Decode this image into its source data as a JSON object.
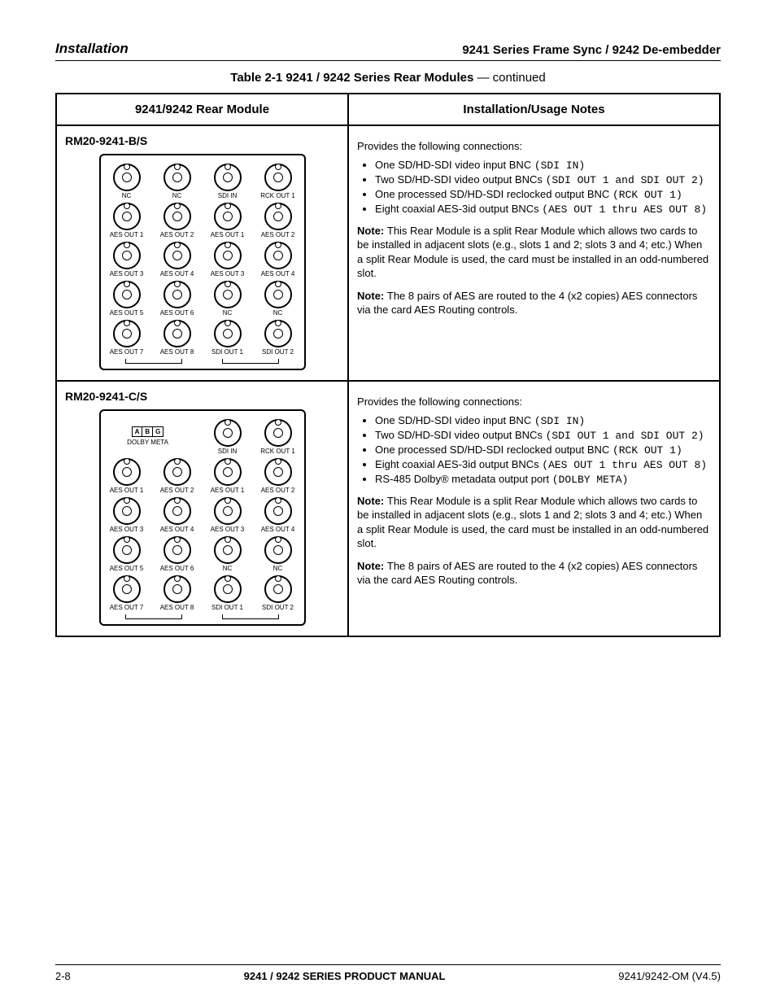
{
  "header": {
    "left": "Installation",
    "right": "9241 Series Frame Sync / 9242 De-embedder"
  },
  "tableTitle": {
    "main": "Table 2-1   9241 / 9242 Series Rear Modules",
    "cont": " — continued"
  },
  "columns": [
    "9241/9242 Rear Module",
    "Installation/Usage Notes"
  ],
  "rows": [
    {
      "module": "RM20-9241-B/S",
      "panel": [
        [
          {
            "t": "bnc",
            "l": "NC"
          },
          {
            "t": "bnc",
            "l": "NC"
          },
          {
            "t": "bnc",
            "l": "SDI IN"
          },
          {
            "t": "bnc",
            "l": "RCK OUT 1"
          }
        ],
        [
          {
            "t": "bnc",
            "l": "AES OUT 1"
          },
          {
            "t": "bnc",
            "l": "AES OUT 2"
          },
          {
            "t": "bnc",
            "l": "AES OUT 1"
          },
          {
            "t": "bnc",
            "l": "AES OUT 2"
          }
        ],
        [
          {
            "t": "bnc",
            "l": "AES OUT 3"
          },
          {
            "t": "bnc",
            "l": "AES OUT 4"
          },
          {
            "t": "bnc",
            "l": "AES OUT 3"
          },
          {
            "t": "bnc",
            "l": "AES OUT 4"
          }
        ],
        [
          {
            "t": "bnc",
            "l": "AES OUT 5"
          },
          {
            "t": "bnc",
            "l": "AES OUT 6"
          },
          {
            "t": "bnc",
            "l": "NC"
          },
          {
            "t": "bnc",
            "l": "NC"
          }
        ],
        [
          {
            "t": "bnc",
            "l": "AES OUT 7"
          },
          {
            "t": "bnc",
            "l": "AES OUT 8"
          },
          {
            "t": "bnc",
            "l": "SDI OUT 1"
          },
          {
            "t": "bnc",
            "l": "SDI OUT 2"
          }
        ]
      ],
      "notes": {
        "intro": "Provides the following connections:",
        "outs": [
          "One SD/HD-SDI video input BNC (SDI IN)",
          "Two SD/HD-SDI video output BNCs (SDI OUT 1 and SDI OUT 2)",
          "One processed SD/HD-SDI reclocked output BNC (RCK OUT 1)",
          "Eight coaxial AES-3id output BNCs (AES OUT 1 thru AES OUT 8)"
        ],
        "noteA": {
          "lbl": "Note: ",
          "txt": "This Rear Module is a split Rear Module which allows two cards to be installed in adjacent slots (e.g., slots 1 and 2; slots 3 and 4; etc.) When a split Rear Module is used, the card must be installed in an odd-numbered slot."
        },
        "noteB": {
          "lbl": "Note: ",
          "txt": "The 8 pairs of AES are routed to the 4 (x2 copies) AES connectors via the card AES Routing controls."
        }
      }
    },
    {
      "module": "RM20-9241-C/S",
      "panel": [
        [
          {
            "t": "meta",
            "l": "DOLBY META",
            "chars": [
              "A",
              "B",
              "G"
            ]
          },
          {
            "t": "blank"
          },
          {
            "t": "bnc",
            "l": "SDI IN"
          },
          {
            "t": "bnc",
            "l": "RCK OUT 1"
          }
        ],
        [
          {
            "t": "bnc",
            "l": "AES OUT 1"
          },
          {
            "t": "bnc",
            "l": "AES OUT 2"
          },
          {
            "t": "bnc",
            "l": "AES OUT 1"
          },
          {
            "t": "bnc",
            "l": "AES OUT 2"
          }
        ],
        [
          {
            "t": "bnc",
            "l": "AES OUT 3"
          },
          {
            "t": "bnc",
            "l": "AES OUT 4"
          },
          {
            "t": "bnc",
            "l": "AES OUT 3"
          },
          {
            "t": "bnc",
            "l": "AES OUT 4"
          }
        ],
        [
          {
            "t": "bnc",
            "l": "AES OUT 5"
          },
          {
            "t": "bnc",
            "l": "AES OUT 6"
          },
          {
            "t": "bnc",
            "l": "NC"
          },
          {
            "t": "bnc",
            "l": "NC"
          }
        ],
        [
          {
            "t": "bnc",
            "l": "AES OUT 7"
          },
          {
            "t": "bnc",
            "l": "AES OUT 8"
          },
          {
            "t": "bnc",
            "l": "SDI OUT 1"
          },
          {
            "t": "bnc",
            "l": "SDI OUT 2"
          }
        ]
      ],
      "notes": {
        "intro": "Provides the following connections:",
        "outs": [
          "One SD/HD-SDI video input BNC (SDI IN)",
          "Two SD/HD-SDI video output BNCs (SDI OUT 1 and SDI OUT 2)",
          "One processed SD/HD-SDI reclocked output BNC (RCK OUT 1)",
          "Eight coaxial AES-3id output BNCs (AES OUT 1 thru AES OUT 8)",
          "RS-485 Dolby® metadata output port (DOLBY META)"
        ],
        "noteA": {
          "lbl": "Note: ",
          "txt": "This Rear Module is a split Rear Module which allows two cards to be installed in adjacent slots (e.g., slots 1 and 2; slots 3 and 4; etc.) When a split Rear Module is used, the card must be installed in an odd-numbered slot."
        },
        "noteB": {
          "lbl": "Note: ",
          "txt": "The 8 pairs of AES are routed to the 4 (x2 copies) AES connectors via the card AES Routing controls."
        }
      }
    }
  ],
  "footer": {
    "left": "2-8",
    "mid": "9241 / 9242 SERIES PRODUCT MANUAL",
    "right": "9241/9242-OM (V4.5)"
  }
}
